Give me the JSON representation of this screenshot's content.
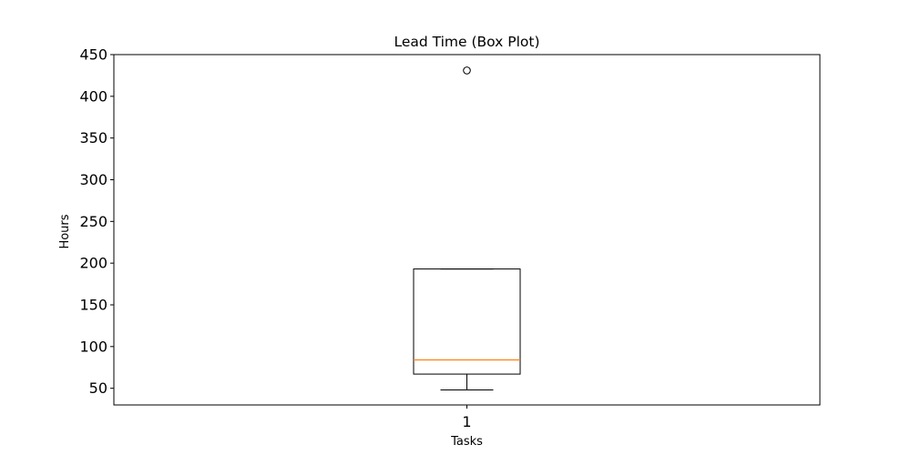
{
  "chart_data": {
    "type": "box",
    "title": "Lead Time (Box Plot)",
    "xlabel": "Tasks",
    "ylabel": "Hours",
    "ylim": [
      30,
      450
    ],
    "yticks": [
      50,
      100,
      150,
      200,
      250,
      300,
      350,
      400,
      450
    ],
    "categories": [
      "1"
    ],
    "boxes": [
      {
        "category": "1",
        "whisker_low": 48,
        "q1": 67,
        "median": 84,
        "q3": 193,
        "whisker_high": 193,
        "outliers": [
          431
        ]
      }
    ],
    "grid": false,
    "colors": {
      "box": "#000000",
      "median": "#ff7f0e",
      "frame": "#000000"
    }
  }
}
